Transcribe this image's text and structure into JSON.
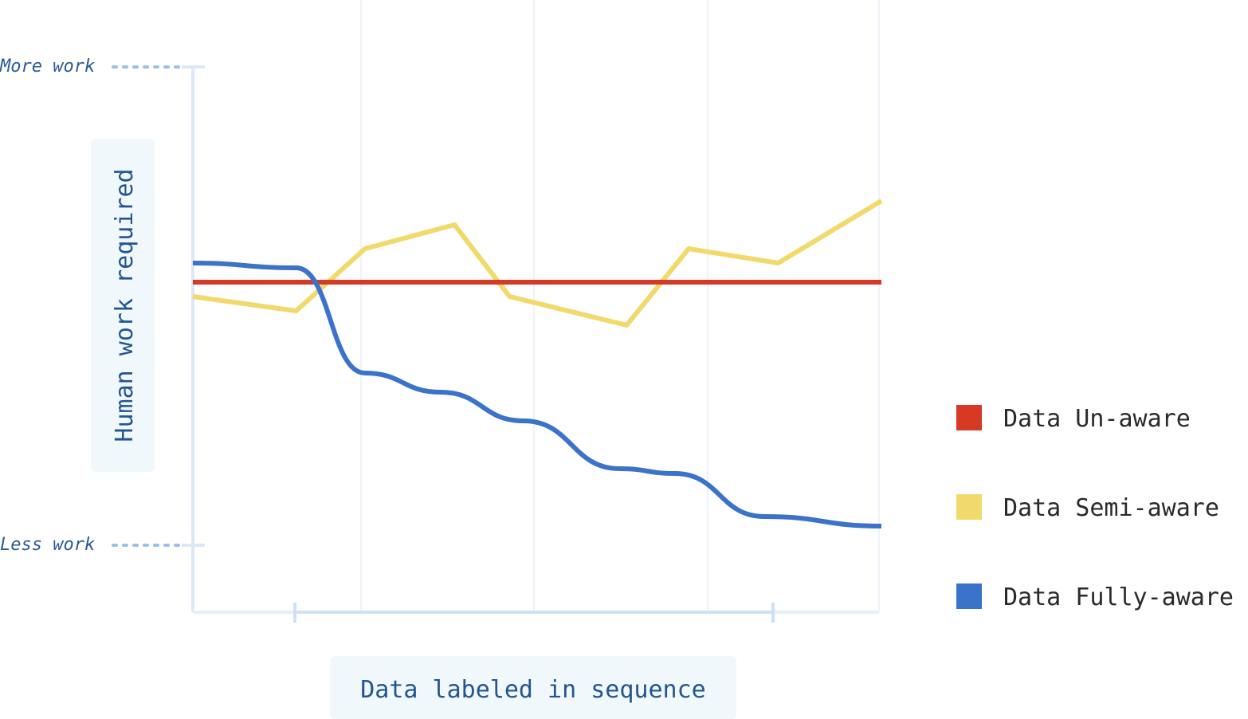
{
  "chart_data": {
    "type": "line",
    "title": "",
    "xlabel": "Data labeled in sequence",
    "ylabel": "Human work required",
    "y_tick_labels": {
      "top": "More work",
      "bottom": "Less work"
    },
    "xlim": [
      0,
      100
    ],
    "ylim": [
      0,
      100
    ],
    "grid": "vertical",
    "legend": "right",
    "series": [
      {
        "name": "Data Un-aware",
        "color": "#d63a24",
        "smooth": false,
        "x": [
          0,
          100
        ],
        "y": [
          55,
          55
        ]
      },
      {
        "name": "Data Semi-aware",
        "color": "#f2d96b",
        "smooth": false,
        "x": [
          0,
          15,
          25,
          38,
          46,
          63,
          72,
          85,
          100
        ],
        "y": [
          52,
          49,
          62,
          67,
          52,
          46,
          62,
          59,
          72
        ]
      },
      {
        "name": "Data Fully-aware",
        "color": "#3b73cb",
        "smooth": true,
        "x": [
          0,
          15,
          25,
          36,
          48,
          62,
          70,
          83,
          100
        ],
        "y": [
          59,
          58,
          36,
          32,
          26,
          16,
          15,
          6,
          4
        ]
      }
    ]
  }
}
